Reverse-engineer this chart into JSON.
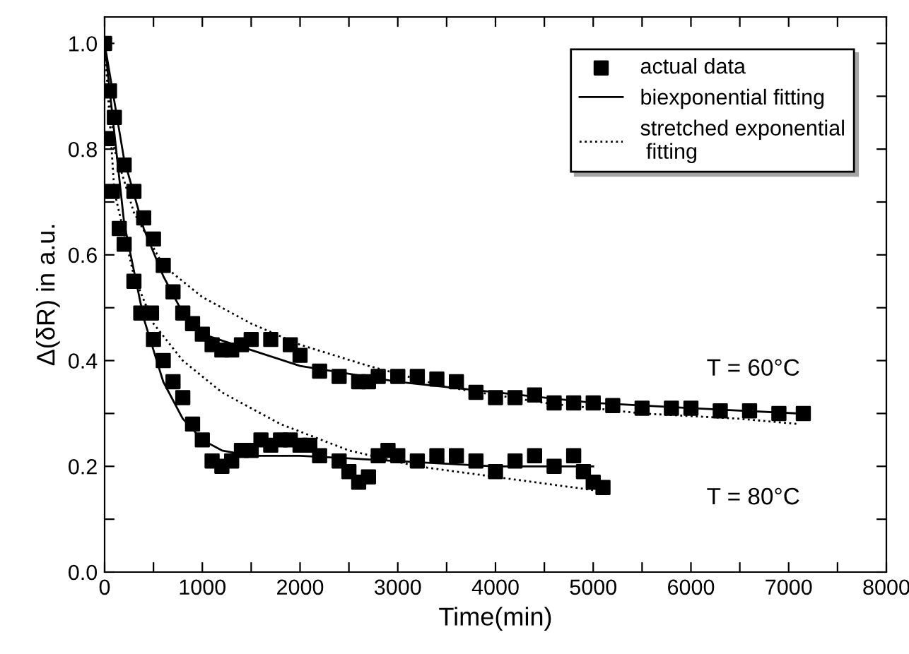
{
  "chart_data": {
    "type": "line",
    "xlabel": "Time(min)",
    "ylabel": "Δ(δR) in a.u.",
    "xlim": [
      0,
      8000
    ],
    "ylim": [
      0,
      1.05
    ],
    "xticks": [
      0,
      {
        "value": 500,
        "label": null
      },
      1000,
      {
        "value": 1500,
        "label": null
      },
      2000,
      {
        "value": 2500,
        "label": null
      },
      3000,
      {
        "value": 3500,
        "label": null
      },
      4000,
      {
        "value": 4500,
        "label": null
      },
      5000,
      {
        "value": 5500,
        "label": null
      },
      6000,
      {
        "value": 6500,
        "label": null
      },
      7000,
      {
        "value": 7500,
        "label": null
      },
      8000
    ],
    "yticks": [
      {
        "value": 0,
        "label": "0.0"
      },
      {
        "value": 0.1,
        "label": null
      },
      0.2,
      {
        "value": 0.3,
        "label": null
      },
      0.4,
      {
        "value": 0.5,
        "label": null
      },
      0.6,
      {
        "value": 0.7,
        "label": null
      },
      0.8,
      {
        "value": 0.9,
        "label": null
      },
      {
        "value": 1,
        "label": "1.0"
      }
    ],
    "grid": false,
    "legend": "top right",
    "annotations": [
      "T = 60°C",
      "T = 80°C"
    ],
    "series": [
      {
        "name": "actual data",
        "type": "scatter",
        "marker": "square",
        "color": "#000000",
        "x": [
          0,
          50,
          100,
          200,
          300,
          400,
          500,
          600,
          700,
          800,
          900,
          1000,
          1100,
          1200,
          1300,
          1400,
          1500,
          1700,
          1900,
          2000,
          2200,
          2400,
          2600,
          2700,
          2800,
          3000,
          3200,
          3400,
          3600,
          3800,
          4000,
          4200,
          4400,
          4600,
          4800,
          5000,
          5200,
          5500,
          5800,
          6000,
          6300,
          6600,
          6900,
          7150
        ],
        "values": [
          1.0,
          0.91,
          0.86,
          0.77,
          0.72,
          0.67,
          0.63,
          0.58,
          0.53,
          0.49,
          0.47,
          0.45,
          0.43,
          0.42,
          0.42,
          0.43,
          0.44,
          0.44,
          0.43,
          0.41,
          0.38,
          0.37,
          0.36,
          0.36,
          0.37,
          0.37,
          0.37,
          0.365,
          0.36,
          0.34,
          0.33,
          0.33,
          0.335,
          0.32,
          0.32,
          0.32,
          0.315,
          0.31,
          0.31,
          0.31,
          0.305,
          0.305,
          0.3,
          0.3
        ]
      },
      {
        "type": "scatter",
        "marker": "square",
        "color": "#000000",
        "x": [
          30,
          80,
          150,
          200,
          300,
          370,
          480,
          500,
          600,
          700,
          800,
          900,
          1000,
          1100,
          1200,
          1300,
          1400,
          1500,
          1600,
          1700,
          1800,
          1900,
          2000,
          2100,
          2200,
          2400,
          2500,
          2600,
          2700,
          2800,
          2900,
          3000,
          3200,
          3400,
          3600,
          3800,
          4000,
          4200,
          4400,
          4600,
          4800,
          4900,
          5000,
          5100
        ],
        "values": [
          0.82,
          0.72,
          0.65,
          0.62,
          0.55,
          0.49,
          0.49,
          0.44,
          0.4,
          0.36,
          0.33,
          0.28,
          0.25,
          0.21,
          0.2,
          0.21,
          0.23,
          0.23,
          0.25,
          0.24,
          0.25,
          0.25,
          0.24,
          0.24,
          0.22,
          0.21,
          0.19,
          0.17,
          0.18,
          0.22,
          0.23,
          0.22,
          0.21,
          0.22,
          0.22,
          0.21,
          0.19,
          0.21,
          0.22,
          0.2,
          0.22,
          0.19,
          0.17,
          0.16
        ]
      },
      {
        "name": "biexponential fitting",
        "line_style": "solid",
        "color": "#000000",
        "x": [
          0,
          200,
          400,
          600,
          800,
          1000,
          1500,
          2000,
          3000,
          4000,
          5000,
          6000,
          7100
        ],
        "values": [
          1.0,
          0.78,
          0.65,
          0.56,
          0.49,
          0.45,
          0.42,
          0.39,
          0.36,
          0.34,
          0.32,
          0.31,
          0.3
        ]
      },
      {
        "line_style": "solid",
        "color": "#000000",
        "x": [
          0,
          200,
          400,
          600,
          800,
          1000,
          1200,
          1500,
          2000,
          3000,
          4000,
          5000
        ],
        "values": [
          1.0,
          0.66,
          0.48,
          0.36,
          0.29,
          0.25,
          0.23,
          0.22,
          0.22,
          0.21,
          0.2,
          0.2
        ]
      },
      {
        "name": "stretched exponential\n fitting",
        "line_style": "dotted",
        "color": "#000000",
        "x": [
          0,
          100,
          300,
          600,
          1000,
          1500,
          2000,
          2700,
          3500,
          4500,
          5500,
          6500,
          7100
        ],
        "values": [
          1.0,
          0.8,
          0.68,
          0.58,
          0.52,
          0.47,
          0.43,
          0.39,
          0.35,
          0.32,
          0.3,
          0.29,
          0.28
        ]
      },
      {
        "line_style": "dotted",
        "color": "#000000",
        "x": [
          0,
          100,
          300,
          500,
          800,
          1200,
          1800,
          2500,
          3200,
          4000,
          4800,
          5000
        ],
        "values": [
          1.0,
          0.72,
          0.56,
          0.47,
          0.4,
          0.34,
          0.28,
          0.23,
          0.2,
          0.18,
          0.16,
          0.155
        ]
      }
    ]
  }
}
